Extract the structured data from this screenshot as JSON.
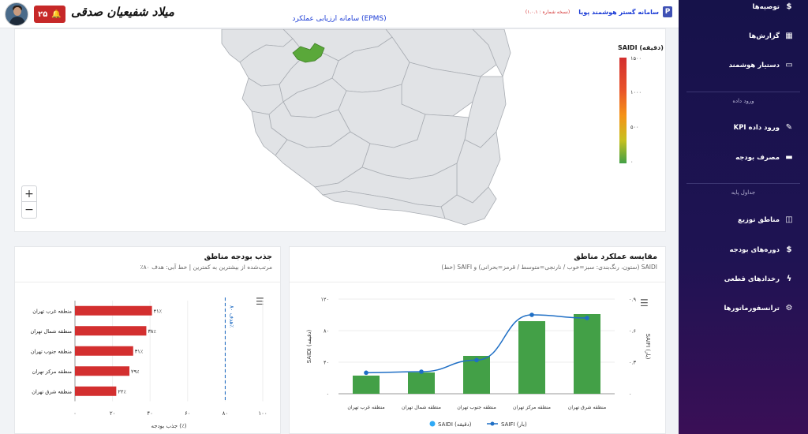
{
  "header": {
    "user_name": "میلاد شفیعیان صدقی",
    "notification_count": "۲۵",
    "system_title": "سامانه ارزیابی عملکرد (EPMS)",
    "brand_name": "سامانه گستر هوشمند پویا",
    "version": "(نسخه شماره : ۱.۰.۱)",
    "logo_letter": "P"
  },
  "sidebar": {
    "items_top": [
      {
        "label": "توصیه‌ها",
        "icon": "dollar-recommend-icon"
      },
      {
        "label": "گزارش‌ها",
        "icon": "report-icon"
      },
      {
        "label": "دستیار هوشمند",
        "icon": "chat-icon"
      }
    ],
    "section_data_entry": "ورود داده",
    "items_data": [
      {
        "label": "ورود داده KPI",
        "icon": "pencil-icon"
      },
      {
        "label": "مصرف بودجه",
        "icon": "card-icon"
      }
    ],
    "section_base_tables": "جداول پایه",
    "items_base": [
      {
        "label": "مناطق توزیع",
        "icon": "map-icon"
      },
      {
        "label": "دوره‌های بودجه",
        "icon": "dollar-icon"
      },
      {
        "label": "رخدادهای قطعی",
        "icon": "bolt-icon"
      },
      {
        "label": "ترانسفورماتورها",
        "icon": "gear-icon"
      }
    ]
  },
  "map": {
    "legend_title": "SAIDI (دقیقه)",
    "legend_ticks": [
      "۱۵۰۰",
      "۱۰۰۰",
      "۵۰۰",
      "۰"
    ],
    "zoom_in": "+",
    "zoom_out": "−"
  },
  "budget_card": {
    "title": "جذب بودجه مناطق",
    "subtitle": "مرتب‌شده از بیشترین به کمترین | خط آبی: هدف ۸۰٪",
    "target_label": "هدف ۸۰٪",
    "x_axis_label": "جذب بودجه (٪)"
  },
  "perf_card": {
    "title": "مقایسه عملکرد مناطق",
    "subtitle": "SAIDI (ستون، رنگ‌بندی: سبز=خوب / نارنجی=متوسط / قرمز=بحرانی) و SAIFI (خط)",
    "legend_saidi": "SAIDI (دقیقه)",
    "legend_saifi": "SAIFI (بار)"
  },
  "colors": {
    "bar_red": "#d32f2f",
    "bar_green": "#43a047",
    "line_blue": "#1f6fc5",
    "target_blue": "#1565c0",
    "sidebar_top": "#16124a",
    "map_highlight": "#5aa83a"
  },
  "chart_data": [
    {
      "type": "bar",
      "orientation": "horizontal",
      "title": "جذب بودجه مناطق",
      "subtitle": "مرتب‌شده از بیشترین به کمترین | خط آبی: هدف ۸۰٪",
      "xlabel": "جذب بودجه (٪)",
      "categories": [
        "منطقه غرب تهران",
        "منطقه شمال تهران",
        "منطقه جنوب تهران",
        "منطقه مرکز تهران",
        "منطقه شرق تهران"
      ],
      "values": [
        41,
        38,
        31,
        29,
        22
      ],
      "value_labels": [
        "۴۱٪",
        "۳۸٪",
        "۳۱٪",
        "۲۹٪",
        "۲۲٪"
      ],
      "x_ticks": [
        "۰",
        "۲۰",
        "۴۰",
        "۶۰",
        "۸۰",
        "۱۰۰"
      ],
      "xlim": [
        0,
        100
      ],
      "target": 80
    },
    {
      "type": "bar",
      "title": "مقایسه عملکرد مناطق",
      "categories": [
        "منطقه غرب تهران",
        "منطقه شمال تهران",
        "منطقه جنوب تهران",
        "منطقه مرکز تهران",
        "منطقه شرق تهران"
      ],
      "series": [
        {
          "name": "SAIDI (دقیقه)",
          "type": "bar",
          "axis": "left",
          "values": [
            23,
            27,
            48,
            92,
            101
          ]
        },
        {
          "name": "SAIFI (بار)",
          "type": "line",
          "axis": "right",
          "values": [
            0.2,
            0.21,
            0.32,
            0.75,
            0.72
          ]
        }
      ],
      "ylabel": "SAIDI (دقیقه)",
      "y2label": "SAIFI (بار)",
      "ylim": [
        0,
        120
      ],
      "y2lim": [
        0,
        0.9
      ],
      "y_ticks": [
        "۰",
        "۴۰",
        "۸۰",
        "۱۲۰"
      ],
      "y2_ticks": [
        "۰",
        "۰.۳",
        "۰.۶",
        "۰.۹"
      ]
    }
  ]
}
